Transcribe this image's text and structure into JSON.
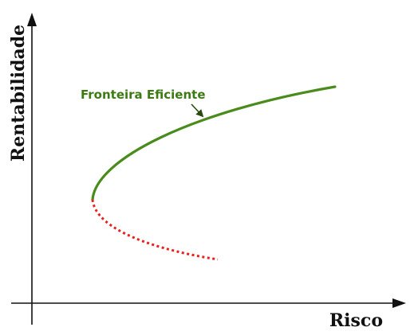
{
  "diagram": {
    "y_axis_label": "Rentabilidade",
    "x_axis_label": "Risco",
    "curve_label": "Fronteira Eficiente",
    "efficient_color": "#4a8c1c",
    "label_color": "#3d7a14",
    "inefficient_color": "#e8201e",
    "axis_color": "#111111",
    "efficient_style": "solid",
    "inefficient_style": "dotted"
  }
}
